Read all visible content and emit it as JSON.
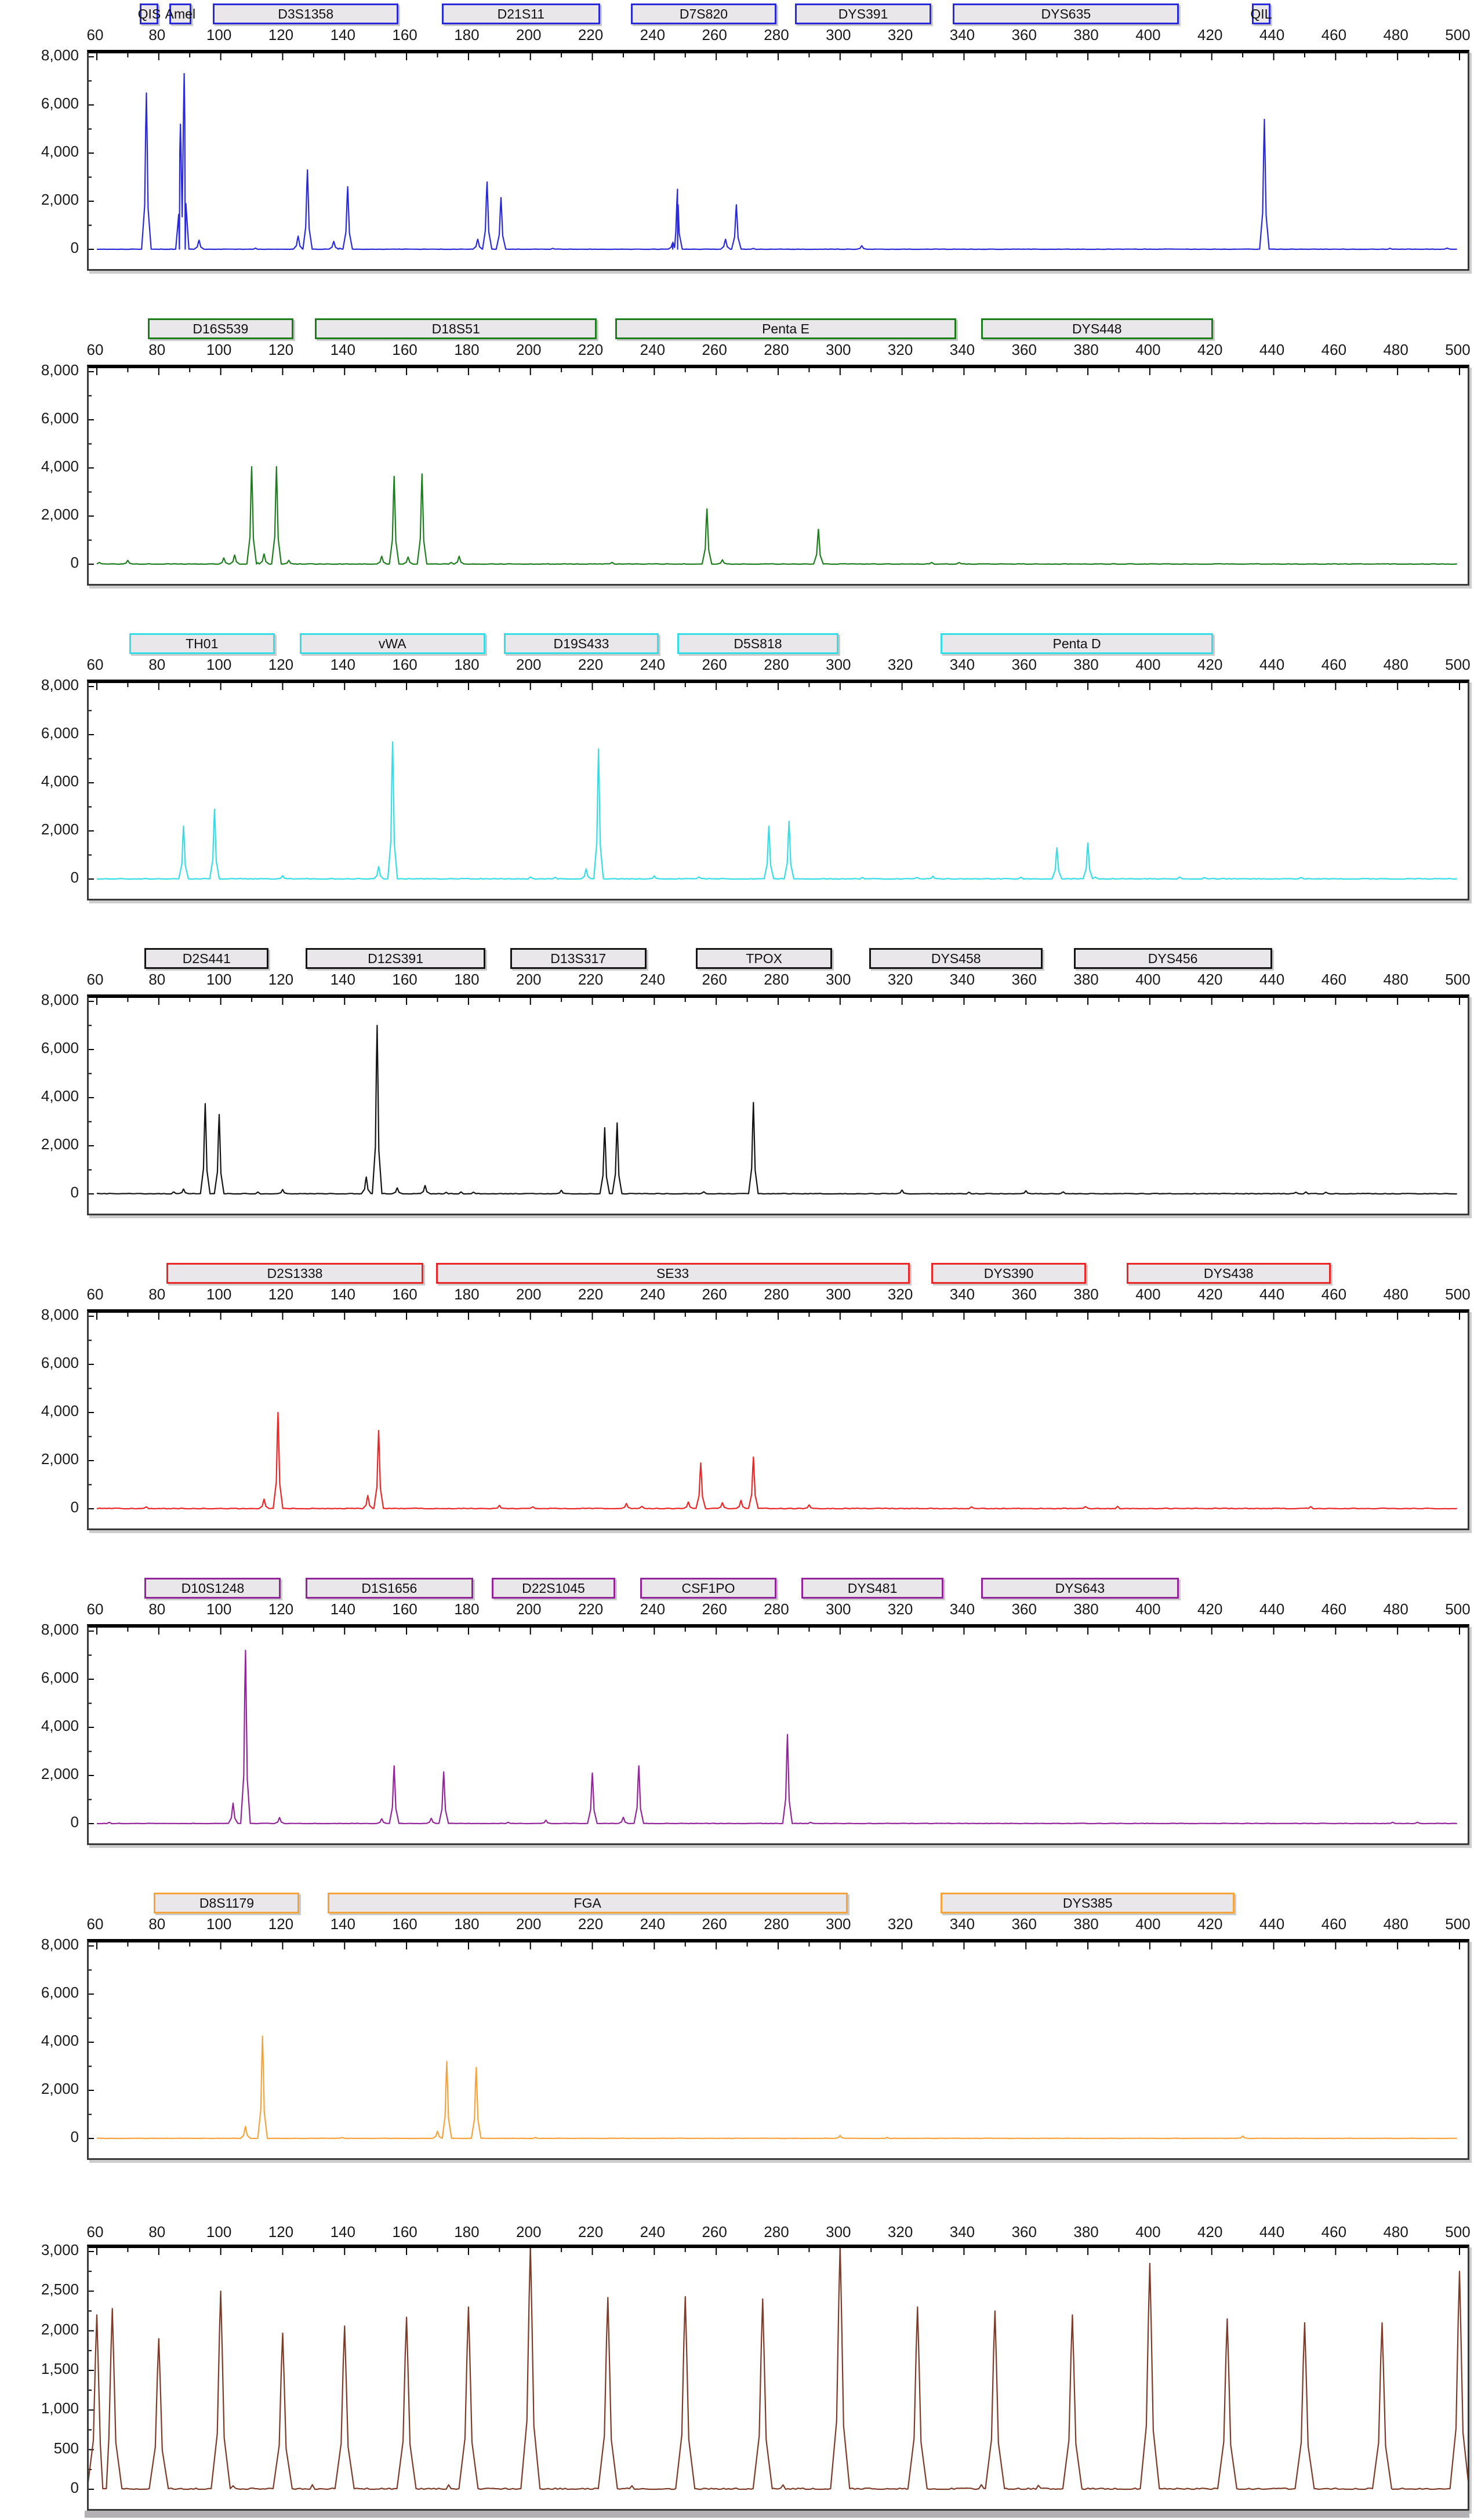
{
  "view": {
    "name": "capillary-electrophoresis-electropherogram",
    "panels_count": 8
  },
  "x_axis": {
    "min": 60,
    "max": 500,
    "tick_step": 20,
    "ticks": [
      60,
      80,
      100,
      120,
      140,
      160,
      180,
      200,
      220,
      240,
      260,
      280,
      300,
      320,
      340,
      360,
      380,
      400,
      420,
      440,
      460,
      480,
      500
    ]
  },
  "chart_data": [
    {
      "type": "line",
      "name": "blue",
      "color": "#2a2ad8",
      "noise": 18,
      "peak_w": 0.7,
      "seed": 101,
      "ylim": [
        0,
        8000
      ],
      "y_ticks": [
        "8,000",
        "6,000",
        "4,000",
        "2,000",
        "0"
      ],
      "y_tick_values": [
        8000,
        6000,
        4000,
        2000,
        0
      ],
      "markers": [
        {
          "label": "QIS",
          "start": 74.5,
          "end": 80.5
        },
        {
          "label": "Amel",
          "start": 84,
          "end": 91
        },
        {
          "label": "D3S1358",
          "start": 98,
          "end": 158
        },
        {
          "label": "D21S11",
          "start": 172,
          "end": 223
        },
        {
          "label": "D7S820",
          "start": 233,
          "end": 280
        },
        {
          "label": "DYS391",
          "start": 286,
          "end": 330
        },
        {
          "label": "DYS635",
          "start": 337,
          "end": 410
        },
        {
          "label": "QIL",
          "start": 433.5,
          "end": 439.5
        }
      ],
      "peaks": [
        [
          76,
          6500
        ],
        [
          87,
          5200
        ],
        [
          88.2,
          7300
        ],
        [
          93,
          380
        ],
        [
          125,
          550
        ],
        [
          128,
          3300
        ],
        [
          136.5,
          330
        ],
        [
          141,
          2600
        ],
        [
          183,
          420
        ],
        [
          186,
          2800
        ],
        [
          190.5,
          2150
        ],
        [
          246,
          300
        ],
        [
          247.5,
          2500
        ],
        [
          263,
          420
        ],
        [
          266.5,
          1850
        ],
        [
          307,
          150
        ],
        [
          437,
          5400
        ]
      ]
    },
    {
      "type": "line",
      "name": "green",
      "color": "#1e7e1e",
      "noise": 26,
      "peak_w": 0.7,
      "seed": 102,
      "ylim": [
        0,
        8000
      ],
      "y_ticks": [
        "8,000",
        "6,000",
        "4,000",
        "2,000",
        "0"
      ],
      "y_tick_values": [
        8000,
        6000,
        4000,
        2000,
        0
      ],
      "markers": [
        {
          "label": "D16S539",
          "start": 77,
          "end": 124
        },
        {
          "label": "D18S51",
          "start": 131,
          "end": 222
        },
        {
          "label": "Penta E",
          "start": 228,
          "end": 338
        },
        {
          "label": "DYS448",
          "start": 346,
          "end": 421
        }
      ],
      "peaks": [
        [
          70,
          160
        ],
        [
          101,
          260
        ],
        [
          104.5,
          380
        ],
        [
          110,
          4050
        ],
        [
          114,
          430
        ],
        [
          118,
          4050
        ],
        [
          122,
          160
        ],
        [
          152,
          330
        ],
        [
          156,
          3650
        ],
        [
          160.5,
          300
        ],
        [
          165,
          3750
        ],
        [
          177,
          330
        ],
        [
          257,
          2300
        ],
        [
          262,
          180
        ],
        [
          293,
          1450
        ]
      ]
    },
    {
      "type": "line",
      "name": "cyan",
      "color": "#35dde6",
      "noise": 30,
      "peak_w": 0.7,
      "seed": 103,
      "ylim": [
        0,
        8000
      ],
      "y_ticks": [
        "8,000",
        "6,000",
        "4,000",
        "2,000",
        "0"
      ],
      "y_tick_values": [
        8000,
        6000,
        4000,
        2000,
        0
      ],
      "markers": [
        {
          "label": "TH01",
          "start": 71,
          "end": 118
        },
        {
          "label": "vWA",
          "start": 126,
          "end": 186
        },
        {
          "label": "D19S433",
          "start": 192,
          "end": 242
        },
        {
          "label": "D5S818",
          "start": 248,
          "end": 300
        },
        {
          "label": "Penta D",
          "start": 333,
          "end": 421
        }
      ],
      "peaks": [
        [
          88,
          2200
        ],
        [
          98,
          2900
        ],
        [
          120,
          140
        ],
        [
          151,
          520
        ],
        [
          155.5,
          5700
        ],
        [
          218,
          420
        ],
        [
          222,
          5400
        ],
        [
          240,
          130
        ],
        [
          277,
          2200
        ],
        [
          283.5,
          2400
        ],
        [
          330,
          120
        ],
        [
          370,
          1300
        ],
        [
          380,
          1500
        ]
      ]
    },
    {
      "type": "line",
      "name": "black",
      "color": "#141414",
      "noise": 30,
      "peak_w": 0.7,
      "seed": 104,
      "ylim": [
        0,
        8000
      ],
      "y_ticks": [
        "8,000",
        "6,000",
        "4,000",
        "2,000",
        "0"
      ],
      "y_tick_values": [
        8000,
        6000,
        4000,
        2000,
        0
      ],
      "markers": [
        {
          "label": "D2S441",
          "start": 76,
          "end": 116
        },
        {
          "label": "D12S391",
          "start": 128,
          "end": 186
        },
        {
          "label": "D13S317",
          "start": 194,
          "end": 238
        },
        {
          "label": "TPOX",
          "start": 254,
          "end": 298
        },
        {
          "label": "DYS458",
          "start": 310,
          "end": 366
        },
        {
          "label": "DYS456",
          "start": 376,
          "end": 440
        }
      ],
      "peaks": [
        [
          88,
          200
        ],
        [
          95,
          3750
        ],
        [
          99.5,
          3300
        ],
        [
          120,
          180
        ],
        [
          147,
          700
        ],
        [
          150.5,
          7000
        ],
        [
          157,
          250
        ],
        [
          166,
          350
        ],
        [
          210,
          150
        ],
        [
          224,
          2750
        ],
        [
          228,
          2950
        ],
        [
          272,
          3800
        ],
        [
          320,
          160
        ],
        [
          360,
          130
        ]
      ]
    },
    {
      "type": "line",
      "name": "red",
      "color": "#ea2626",
      "noise": 36,
      "peak_w": 0.7,
      "seed": 105,
      "ylim": [
        0,
        8000
      ],
      "y_ticks": [
        "8,000",
        "6,000",
        "4,000",
        "2,000",
        "0"
      ],
      "y_tick_values": [
        8000,
        6000,
        4000,
        2000,
        0
      ],
      "markers": [
        {
          "label": "D2S1338",
          "start": 83,
          "end": 166
        },
        {
          "label": "SE33",
          "start": 170,
          "end": 323
        },
        {
          "label": "DYS390",
          "start": 330,
          "end": 380
        },
        {
          "label": "DYS438",
          "start": 393,
          "end": 459
        }
      ],
      "peaks": [
        [
          114,
          400
        ],
        [
          118.5,
          4000
        ],
        [
          147.5,
          550
        ],
        [
          151,
          3250
        ],
        [
          190,
          140
        ],
        [
          231,
          220
        ],
        [
          251,
          280
        ],
        [
          255,
          1900
        ],
        [
          262,
          250
        ],
        [
          268,
          350
        ],
        [
          272,
          2150
        ],
        [
          290,
          160
        ]
      ]
    },
    {
      "type": "line",
      "name": "purple",
      "color": "#93259a",
      "noise": 20,
      "peak_w": 0.7,
      "seed": 106,
      "ylim": [
        0,
        8000
      ],
      "y_ticks": [
        "8,000",
        "6,000",
        "4,000",
        "2,000",
        "0"
      ],
      "y_tick_values": [
        8000,
        6000,
        4000,
        2000,
        0
      ],
      "markers": [
        {
          "label": "D10S1248",
          "start": 76,
          "end": 120
        },
        {
          "label": "D1S1656",
          "start": 128,
          "end": 182
        },
        {
          "label": "D22S1045",
          "start": 188,
          "end": 228
        },
        {
          "label": "CSF1PO",
          "start": 236,
          "end": 280
        },
        {
          "label": "DYS481",
          "start": 288,
          "end": 334
        },
        {
          "label": "DYS643",
          "start": 346,
          "end": 410
        }
      ],
      "peaks": [
        [
          104,
          850
        ],
        [
          108,
          7200
        ],
        [
          119,
          250
        ],
        [
          152,
          200
        ],
        [
          156,
          2400
        ],
        [
          168,
          220
        ],
        [
          172,
          2150
        ],
        [
          205,
          140
        ],
        [
          220,
          2100
        ],
        [
          230,
          260
        ],
        [
          235,
          2400
        ],
        [
          283,
          3700
        ]
      ]
    },
    {
      "type": "line",
      "name": "orange",
      "color": "#f7a33c",
      "noise": 16,
      "peak_w": 0.7,
      "seed": 107,
      "ylim": [
        0,
        8000
      ],
      "y_ticks": [
        "8,000",
        "6,000",
        "4,000",
        "2,000",
        "0"
      ],
      "y_tick_values": [
        8000,
        6000,
        4000,
        2000,
        0
      ],
      "markers": [
        {
          "label": "D8S1179",
          "start": 79,
          "end": 126
        },
        {
          "label": "FGA",
          "start": 135,
          "end": 303
        },
        {
          "label": "DYS385",
          "start": 333,
          "end": 428
        }
      ],
      "peaks": [
        [
          108,
          500
        ],
        [
          113.5,
          4250
        ],
        [
          170,
          300
        ],
        [
          173,
          3200
        ],
        [
          182.5,
          2950
        ],
        [
          300,
          120
        ],
        [
          430,
          100
        ]
      ]
    },
    {
      "type": "line",
      "name": "size-standard-brown",
      "color": "#7e3b28",
      "noise": 20,
      "peak_w": 1.4,
      "seed": 108,
      "ylim": [
        0,
        3000
      ],
      "y_ticks": [
        "3,000",
        "2,500",
        "2,000",
        "1,500",
        "1,000",
        "500",
        "0"
      ],
      "y_tick_values": [
        3000,
        2500,
        2000,
        1500,
        1000,
        500,
        0
      ],
      "markers": [],
      "peaks": [
        [
          60,
          2200
        ],
        [
          65,
          2280
        ],
        [
          80,
          1900
        ],
        [
          100,
          2500
        ],
        [
          120,
          1970
        ],
        [
          140,
          2060
        ],
        [
          160,
          2170
        ],
        [
          180,
          2300
        ],
        [
          200,
          3080
        ],
        [
          225,
          2420
        ],
        [
          250,
          2430
        ],
        [
          275,
          2400
        ],
        [
          300,
          3080
        ],
        [
          325,
          2300
        ],
        [
          350,
          2250
        ],
        [
          375,
          2200
        ],
        [
          400,
          2850
        ],
        [
          425,
          2150
        ],
        [
          450,
          2100
        ],
        [
          475,
          2100
        ],
        [
          500,
          2750
        ]
      ]
    }
  ]
}
